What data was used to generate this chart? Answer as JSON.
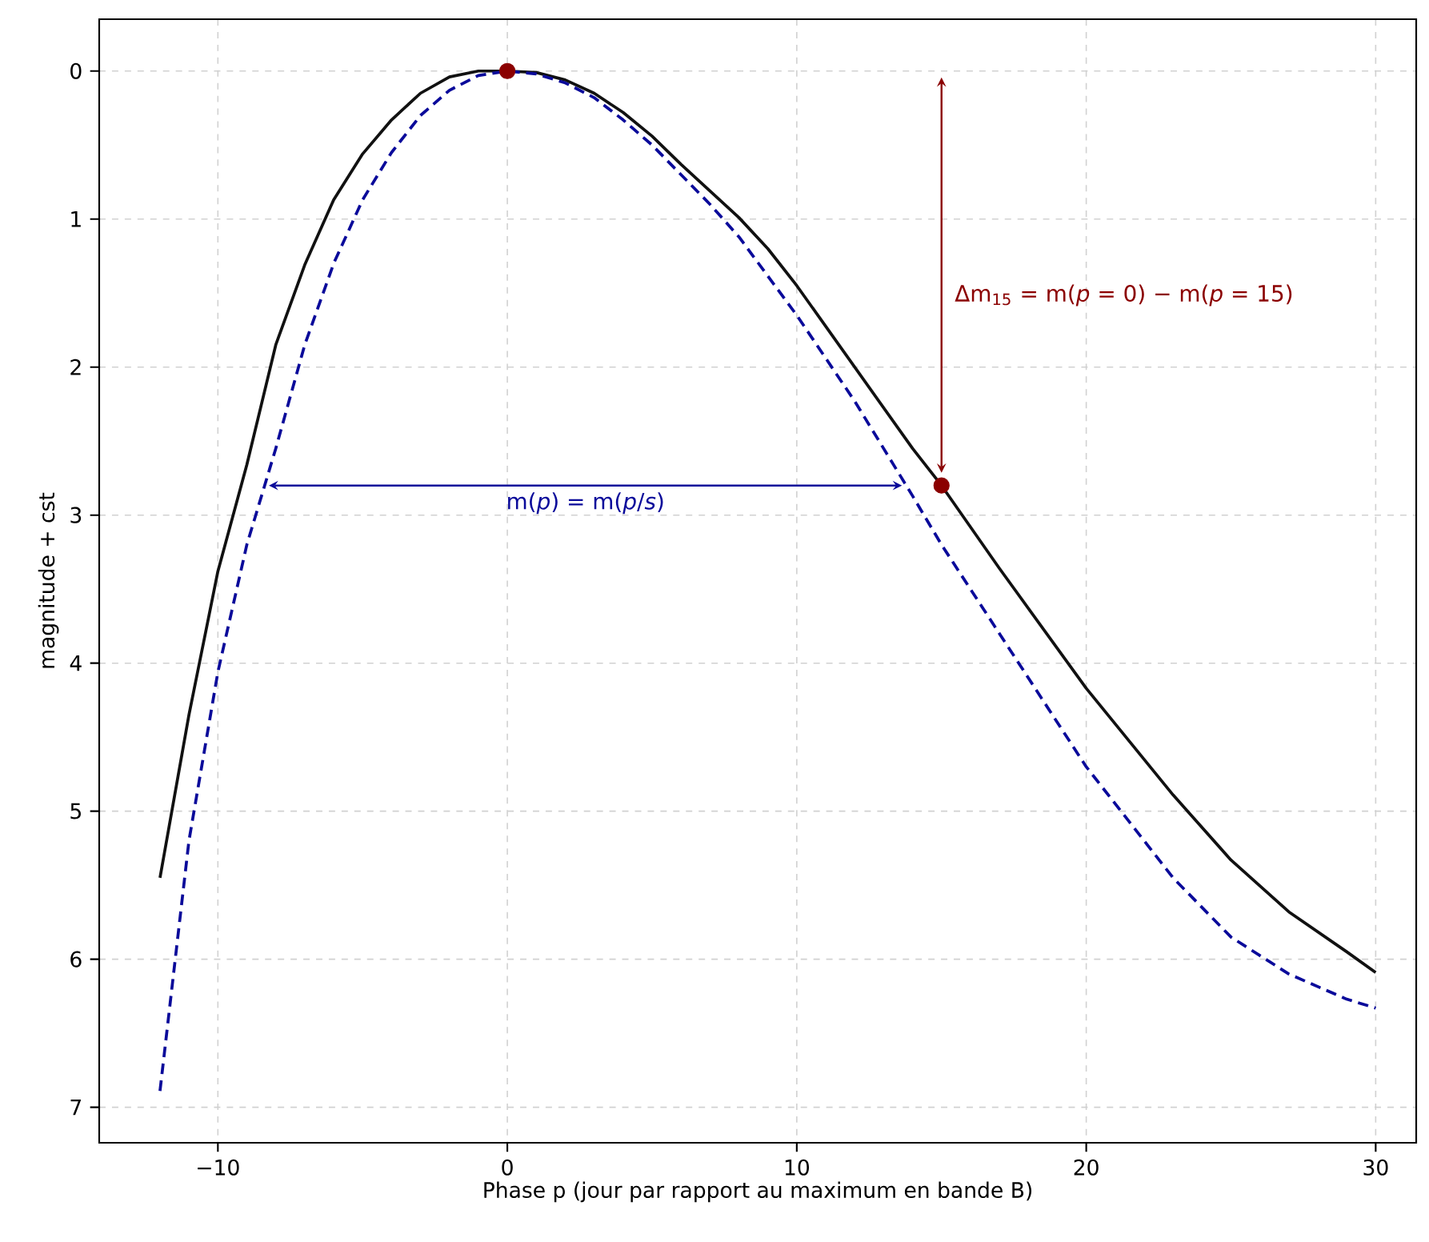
{
  "chart_data": {
    "type": "line",
    "xlabel": "Phase p (jour par rapport au maximum en bande B)",
    "ylabel": "magnitude + cst",
    "xlim": [
      -14.1,
      31.4
    ],
    "ylim": [
      7.24,
      -0.35
    ],
    "xticks": [
      {
        "value": -10,
        "label": "−10"
      },
      0,
      10,
      20,
      30
    ],
    "yticks": [
      0,
      1,
      2,
      3,
      4,
      5,
      6,
      7
    ],
    "grid": true,
    "series": [
      {
        "color": "#111111",
        "line_style": "solid",
        "x": [
          -12,
          -11,
          -10,
          -9,
          -8,
          -7,
          -6,
          -5,
          -4,
          -3,
          -2,
          -1,
          0,
          1,
          2,
          3,
          4,
          5,
          6,
          7,
          8,
          9,
          10,
          12,
          14,
          15,
          17,
          20,
          23,
          25,
          27,
          29,
          30
        ],
        "values": [
          5.45,
          4.35,
          3.38,
          2.66,
          1.85,
          1.31,
          0.87,
          0.56,
          0.33,
          0.15,
          0.04,
          0.0,
          0.0,
          0.01,
          0.06,
          0.15,
          0.28,
          0.44,
          0.63,
          0.81,
          0.99,
          1.2,
          1.45,
          2.0,
          2.55,
          2.8,
          3.36,
          4.17,
          4.89,
          5.33,
          5.68,
          5.95,
          6.09
        ]
      },
      {
        "color": "#0a0a9a",
        "line_style": "dashed",
        "x": [
          -12,
          -11,
          -10,
          -9,
          -8,
          -7,
          -6,
          -5,
          -4,
          -3,
          -2,
          -1,
          0,
          1,
          2,
          3,
          4,
          5,
          6,
          7,
          8,
          10,
          12,
          14,
          15,
          17,
          20,
          23,
          25,
          27,
          29,
          30
        ],
        "values": [
          6.89,
          5.2,
          4.06,
          3.2,
          2.55,
          1.85,
          1.3,
          0.87,
          0.55,
          0.3,
          0.13,
          0.03,
          0.0,
          0.02,
          0.08,
          0.18,
          0.33,
          0.5,
          0.7,
          0.9,
          1.12,
          1.65,
          2.23,
          2.87,
          3.2,
          3.8,
          4.7,
          5.45,
          5.85,
          6.1,
          6.27,
          6.33
        ]
      },
      {
        "type": "scatter",
        "color": "#8b0000",
        "x": [
          0,
          15
        ],
        "values": [
          0,
          2.8
        ]
      }
    ],
    "annotations": [
      "Δm$_{15}$ = m(*p* = 0) − m(*p* = 15)",
      "m(*p*) = m(*p*/*s*)"
    ]
  }
}
